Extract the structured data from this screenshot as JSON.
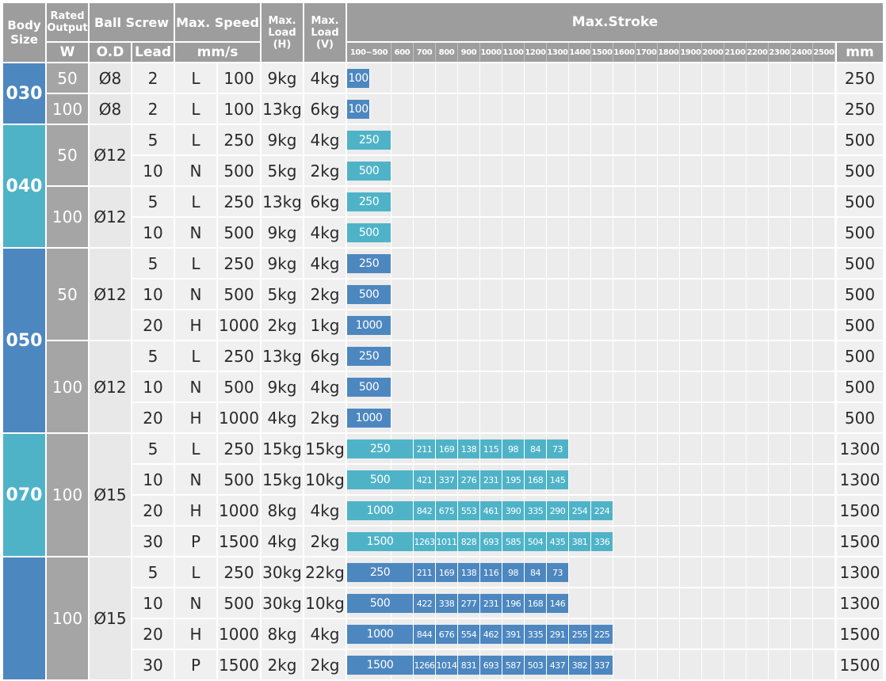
{
  "colors": {
    "header": "#9d9d9d",
    "blue": "#4d87c0",
    "teal": "#4fb3c8",
    "row_bg": "#f0f0f0",
    "grid_bg": "#ececec"
  },
  "header": {
    "body_size": "Body Size",
    "rated_output": "Rated Output",
    "rated_unit": "W",
    "ball_screw": "Ball Screw",
    "od": "O.D",
    "lead": "Lead",
    "max_speed": "Max. Speed",
    "speed_unit": "mm/s",
    "max_load_h": "Max. Load (H)",
    "max_load_v": "Max. Load (V)",
    "max_stroke": "Max.Stroke",
    "stroke_unit": "mm",
    "stroke_columns": [
      "100~500",
      "600",
      "700",
      "800",
      "900",
      "1000",
      "1100",
      "1200",
      "1300",
      "1400",
      "1500",
      "1600",
      "1700",
      "1800",
      "1900",
      "2000",
      "2100",
      "2200",
      "2300",
      "2400",
      "2500"
    ]
  },
  "groups": [
    {
      "body": "030",
      "color": "blue",
      "rows": 2
    },
    {
      "body": "040",
      "color": "teal",
      "rows": 4
    },
    {
      "body": "050",
      "color": "blue",
      "rows": 6
    },
    {
      "body": "070",
      "color": "teal",
      "rows": 4
    },
    {
      "body": "",
      "color": "blue",
      "rows": 4
    }
  ],
  "output_groups": [
    {
      "w": "50",
      "od": "Ø8",
      "rows": 1
    },
    {
      "w": "100",
      "od": "Ø8",
      "rows": 1
    },
    {
      "w": "50",
      "od": "Ø12",
      "rows": 2
    },
    {
      "w": "100",
      "od": "Ø12",
      "rows": 2
    },
    {
      "w": "50",
      "od": "Ø12",
      "rows": 3
    },
    {
      "w": "100",
      "od": "Ø12",
      "rows": 3
    },
    {
      "w": "100",
      "od": "Ø15",
      "rows": 4
    },
    {
      "w": "100",
      "od": "Ø15",
      "rows": 4
    }
  ],
  "rows": [
    {
      "lead": "2",
      "code": "L",
      "speed": "100",
      "h": "9kg",
      "v": "4kg",
      "stroke": [
        "100"
      ],
      "max": "250"
    },
    {
      "lead": "2",
      "code": "L",
      "speed": "100",
      "h": "13kg",
      "v": "6kg",
      "stroke": [
        "100"
      ],
      "max": "250"
    },
    {
      "lead": "5",
      "code": "L",
      "speed": "250",
      "h": "9kg",
      "v": "4kg",
      "stroke": [
        "250"
      ],
      "max": "500"
    },
    {
      "lead": "10",
      "code": "N",
      "speed": "500",
      "h": "5kg",
      "v": "2kg",
      "stroke": [
        "500"
      ],
      "max": "500"
    },
    {
      "lead": "5",
      "code": "L",
      "speed": "250",
      "h": "13kg",
      "v": "6kg",
      "stroke": [
        "250"
      ],
      "max": "500"
    },
    {
      "lead": "10",
      "code": "N",
      "speed": "500",
      "h": "9kg",
      "v": "4kg",
      "stroke": [
        "500"
      ],
      "max": "500"
    },
    {
      "lead": "5",
      "code": "L",
      "speed": "250",
      "h": "9kg",
      "v": "4kg",
      "stroke": [
        "250"
      ],
      "max": "500"
    },
    {
      "lead": "10",
      "code": "N",
      "speed": "500",
      "h": "5kg",
      "v": "2kg",
      "stroke": [
        "500"
      ],
      "max": "500"
    },
    {
      "lead": "20",
      "code": "H",
      "speed": "1000",
      "h": "2kg",
      "v": "1kg",
      "stroke": [
        "1000"
      ],
      "max": "500"
    },
    {
      "lead": "5",
      "code": "L",
      "speed": "250",
      "h": "13kg",
      "v": "6kg",
      "stroke": [
        "250"
      ],
      "max": "500"
    },
    {
      "lead": "10",
      "code": "N",
      "speed": "500",
      "h": "9kg",
      "v": "4kg",
      "stroke": [
        "500"
      ],
      "max": "500"
    },
    {
      "lead": "20",
      "code": "H",
      "speed": "1000",
      "h": "4kg",
      "v": "2kg",
      "stroke": [
        "1000"
      ],
      "max": "500"
    },
    {
      "lead": "5",
      "code": "L",
      "speed": "250",
      "h": "15kg",
      "v": "15kg",
      "stroke": [
        "250",
        "211",
        "169",
        "138",
        "115",
        "98",
        "84",
        "73"
      ],
      "max": "1300"
    },
    {
      "lead": "10",
      "code": "N",
      "speed": "500",
      "h": "15kg",
      "v": "10kg",
      "stroke": [
        "500",
        "421",
        "337",
        "276",
        "231",
        "195",
        "168",
        "145"
      ],
      "max": "1300"
    },
    {
      "lead": "20",
      "code": "H",
      "speed": "1000",
      "h": "8kg",
      "v": "4kg",
      "stroke": [
        "1000",
        "842",
        "675",
        "553",
        "461",
        "390",
        "335",
        "290",
        "254",
        "224"
      ],
      "max": "1500"
    },
    {
      "lead": "30",
      "code": "P",
      "speed": "1500",
      "h": "4kg",
      "v": "2kg",
      "stroke": [
        "1500",
        "1263",
        "1011",
        "828",
        "693",
        "585",
        "504",
        "435",
        "381",
        "336"
      ],
      "max": "1500"
    },
    {
      "lead": "5",
      "code": "L",
      "speed": "250",
      "h": "30kg",
      "v": "22kg",
      "stroke": [
        "250",
        "211",
        "169",
        "138",
        "116",
        "98",
        "84",
        "73"
      ],
      "max": "1300"
    },
    {
      "lead": "10",
      "code": "N",
      "speed": "500",
      "h": "30kg",
      "v": "10kg",
      "stroke": [
        "500",
        "422",
        "338",
        "277",
        "231",
        "196",
        "168",
        "146"
      ],
      "max": "1300"
    },
    {
      "lead": "20",
      "code": "H",
      "speed": "1000",
      "h": "8kg",
      "v": "4kg",
      "stroke": [
        "1000",
        "844",
        "676",
        "554",
        "462",
        "391",
        "335",
        "291",
        "255",
        "225"
      ],
      "max": "1500"
    },
    {
      "lead": "30",
      "code": "P",
      "speed": "1500",
      "h": "2kg",
      "v": "2kg",
      "stroke": [
        "1500",
        "1266",
        "1014",
        "831",
        "693",
        "587",
        "503",
        "437",
        "382",
        "337"
      ],
      "max": "1500"
    }
  ]
}
